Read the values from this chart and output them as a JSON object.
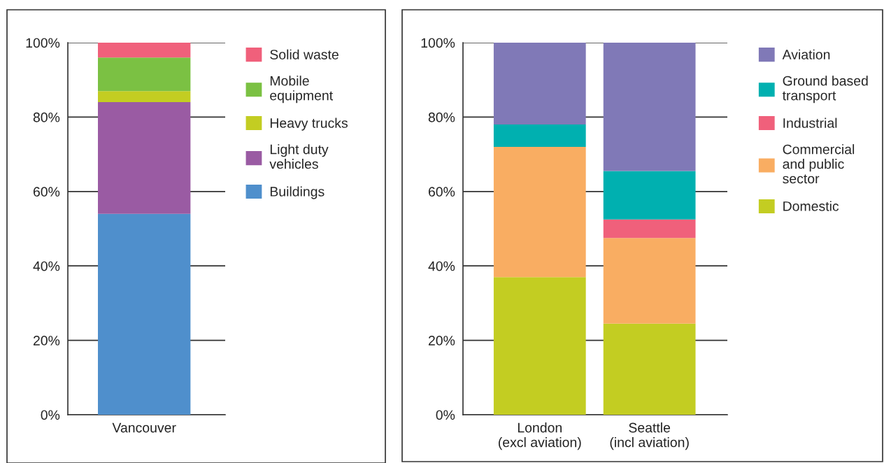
{
  "chart_data": [
    {
      "type": "bar",
      "stacked": true,
      "categories": [
        "Vancouver"
      ],
      "ylim": [
        0,
        100
      ],
      "yticks": [
        {
          "value": 0,
          "label": "0%"
        },
        {
          "value": 20,
          "label": "20%"
        },
        {
          "value": 40,
          "label": "40%"
        },
        {
          "value": 60,
          "label": "60%"
        },
        {
          "value": 80,
          "label": "80%"
        },
        {
          "value": 100,
          "label": "100%"
        }
      ],
      "grid": "y",
      "legend": "right",
      "series": [
        {
          "name": "Buildings",
          "color": "#4f8fcc",
          "values": [
            54
          ]
        },
        {
          "name": "Light duty vehicles",
          "color": "#9a5ba3",
          "values": [
            30
          ]
        },
        {
          "name": "Heavy trucks",
          "color": "#c3cd22",
          "values": [
            3
          ]
        },
        {
          "name": "Mobile equipment",
          "color": "#7bc143",
          "values": [
            9
          ]
        },
        {
          "name": "Solid waste",
          "color": "#f0607b",
          "values": [
            4
          ]
        }
      ]
    },
    {
      "type": "bar",
      "stacked": true,
      "categories": [
        "London\n(excl aviation)",
        "Seattle\n(incl aviation)"
      ],
      "ylim": [
        0,
        100
      ],
      "yticks": [
        {
          "value": 0,
          "label": "0%"
        },
        {
          "value": 20,
          "label": "20%"
        },
        {
          "value": 40,
          "label": "40%"
        },
        {
          "value": 60,
          "label": "60%"
        },
        {
          "value": 80,
          "label": "80%"
        },
        {
          "value": 100,
          "label": "100%"
        }
      ],
      "grid": "y",
      "legend": "right",
      "series": [
        {
          "name": "Domestic",
          "color": "#c3cd22",
          "values": [
            37,
            24.5
          ]
        },
        {
          "name": "Commercial and public sector",
          "color": "#f9ad62",
          "values": [
            35,
            23
          ]
        },
        {
          "name": "Industrial",
          "color": "#f0607b",
          "values": [
            null,
            5
          ]
        },
        {
          "name": "Ground based transport",
          "color": "#00b0b0",
          "values": [
            6,
            13
          ]
        },
        {
          "name": "Aviation",
          "color": "#8079b7",
          "values": [
            22,
            34.5
          ]
        }
      ]
    }
  ]
}
